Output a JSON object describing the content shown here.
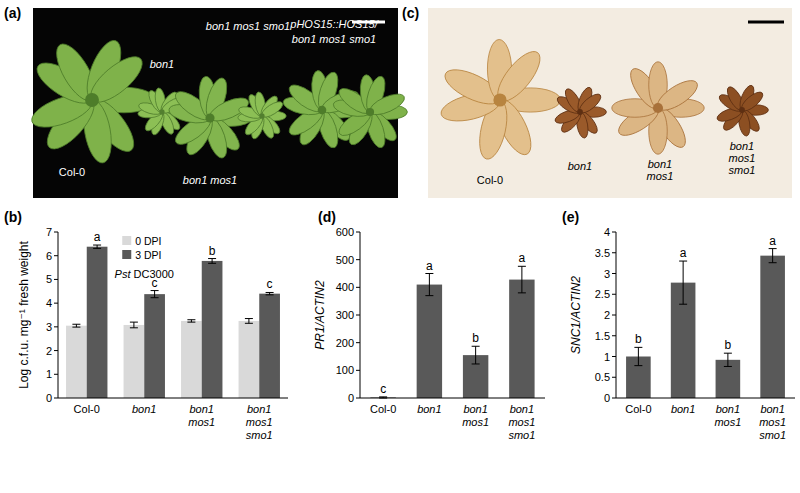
{
  "chart_data": [
    {
      "type": "bar",
      "title": "(b)",
      "subtitle": "Pst DC3000",
      "categories": [
        "Col-0",
        "bon1",
        "bon1 mos1",
        "bon1 mos1 smo1"
      ],
      "series": [
        {
          "name": "0 DPI",
          "color": "#d9d9d9",
          "values": [
            3.05,
            3.08,
            3.25,
            3.25
          ],
          "errors": [
            0.06,
            0.12,
            0.05,
            0.1
          ]
        },
        {
          "name": "3 DPI",
          "color": "#595959",
          "values": [
            6.38,
            4.38,
            5.78,
            4.4
          ],
          "errors": [
            0.07,
            0.15,
            0.1,
            0.05
          ]
        }
      ],
      "ylabel": "Log c.f.u. mg⁻¹ fresh weight",
      "ylim": [
        0,
        7
      ],
      "yticks": [
        0,
        1,
        2,
        3,
        4,
        5,
        6,
        7
      ],
      "annotations": [
        "a",
        "c",
        "b",
        "c"
      ],
      "legend": "upper left"
    },
    {
      "type": "bar",
      "title": "(d)",
      "categories": [
        "Col-0",
        "bon1",
        "bon1 mos1",
        "bon1 mos1 smo1"
      ],
      "values": [
        2,
        410,
        155,
        428
      ],
      "errors": [
        2,
        40,
        32,
        48
      ],
      "color": "#595959",
      "ylabel": "PR1/ACTIN2",
      "ylim": [
        0,
        600
      ],
      "yticks": [
        0,
        100,
        200,
        300,
        400,
        500,
        600
      ],
      "annotations": [
        "c",
        "a",
        "b",
        "a"
      ]
    },
    {
      "type": "bar",
      "title": "(e)",
      "categories": [
        "Col-0",
        "bon1",
        "bon1 mos1",
        "bon1 mos1 smo1"
      ],
      "values": [
        1.0,
        2.78,
        0.92,
        3.43
      ],
      "errors": [
        0.22,
        0.52,
        0.16,
        0.17
      ],
      "color": "#595959",
      "ylabel": "SNC1/ACTIN2",
      "ylim": [
        0,
        4
      ],
      "yticks": [
        0,
        0.5,
        1,
        1.5,
        2,
        2.5,
        3,
        3.5,
        4
      ],
      "annotations": [
        "b",
        "a",
        "b",
        "a"
      ]
    }
  ],
  "photos": [
    {
      "title": "(a)",
      "labels": [
        "Col-0",
        "bon1",
        "bon1 mos1 smo1",
        "bon1 mos1",
        "pHOS15::HOS15/",
        "bon1 mos1 smo1"
      ]
    },
    {
      "title": "(c)",
      "labels": [
        "Col-0",
        "bon1",
        "bon1 mos1",
        "bon1 mos1 smo1"
      ]
    }
  ]
}
